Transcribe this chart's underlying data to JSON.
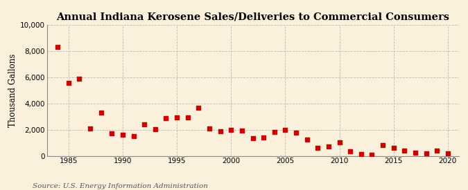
{
  "title": "Annual Indiana Kerosene Sales/Deliveries to Commercial Consumers",
  "ylabel": "Thousand Gallons",
  "source": "Source: U.S. Energy Information Administration",
  "background_color": "#faf0dc",
  "marker_color": "#cc0000",
  "years": [
    1984,
    1985,
    1986,
    1987,
    1988,
    1989,
    1990,
    1991,
    1992,
    1993,
    1994,
    1995,
    1996,
    1997,
    1998,
    1999,
    2000,
    2001,
    2002,
    2003,
    2004,
    2005,
    2006,
    2007,
    2008,
    2009,
    2010,
    2011,
    2012,
    2013,
    2014,
    2015,
    2016,
    2017,
    2018,
    2019,
    2020
  ],
  "values": [
    8300,
    5550,
    5850,
    2100,
    3300,
    1700,
    1600,
    1500,
    2400,
    2050,
    2850,
    2950,
    2950,
    3650,
    2100,
    1850,
    2000,
    1900,
    1350,
    1400,
    1800,
    2000,
    1750,
    1250,
    600,
    700,
    1050,
    350,
    150,
    100,
    800,
    600,
    400,
    250,
    200,
    400,
    200
  ],
  "xlim": [
    1983,
    2021
  ],
  "ylim": [
    0,
    10000
  ],
  "yticks": [
    0,
    2000,
    4000,
    6000,
    8000,
    10000
  ],
  "xticks": [
    1985,
    1990,
    1995,
    2000,
    2005,
    2010,
    2015,
    2020
  ],
  "title_fontsize": 10.5,
  "ylabel_fontsize": 8.5,
  "source_fontsize": 7.5,
  "grid_color": "#bbbbbb",
  "marker_size": 4
}
